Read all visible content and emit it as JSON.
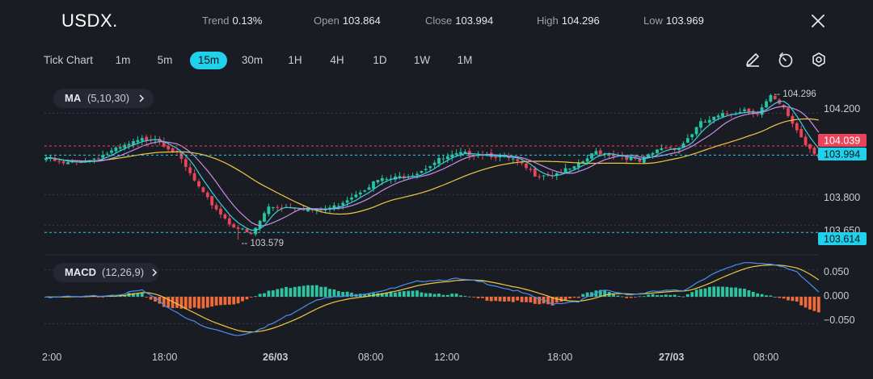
{
  "header": {
    "symbol": "USDX.",
    "stats": [
      {
        "label": "Trend",
        "value": "0.13%"
      },
      {
        "label": "Open",
        "value": "103.864"
      },
      {
        "label": "Close",
        "value": "103.994"
      },
      {
        "label": "High",
        "value": "104.296"
      },
      {
        "label": "Low",
        "value": "103.969"
      }
    ]
  },
  "toolbar": {
    "tick_chart": "Tick Chart",
    "timeframes": [
      "1m",
      "5m",
      "15m",
      "30m",
      "1H",
      "4H",
      "1D",
      "1W",
      "1M"
    ],
    "active_timeframe": "15m"
  },
  "indicators": {
    "ma": {
      "name": "MA",
      "params": "(5,10,30)"
    },
    "macd": {
      "name": "MACD",
      "params": "(12,26,9)"
    }
  },
  "colors": {
    "up": "#26c6a0",
    "down": "#e8455a",
    "ma5": "#39d0e0",
    "ma10": "#c88ee6",
    "ma30": "#f0c840",
    "macd_line": "#4a8ef0",
    "signal_line": "#f0c840",
    "hist_pos": "#2fc4a0",
    "hist_neg": "#f06a3a",
    "accent": "#1fd1ea"
  },
  "chart_data": {
    "type": "candlestick",
    "price_axis": {
      "ticks": [
        "104.200",
        "103.800",
        "103.650"
      ],
      "ylim": [
        103.52,
        104.36
      ]
    },
    "time_axis": {
      "ticks": [
        "2:00",
        "18:00",
        "26/03",
        "08:00",
        "12:00",
        "18:00",
        "27/03",
        "08:00"
      ]
    },
    "annotations": {
      "high": "104.296",
      "low": "103.579"
    },
    "price_labels": {
      "red": "104.039",
      "current": "103.994",
      "bottom": "103.614"
    },
    "macd_axis": {
      "ticks": [
        "0.050",
        "0.000",
        "−0.050"
      ],
      "ylim": [
        -0.075,
        0.075
      ]
    },
    "price_anchors": [
      [
        0,
        103.98
      ],
      [
        4,
        103.95
      ],
      [
        10,
        103.97
      ],
      [
        16,
        104.02
      ],
      [
        22,
        104.07
      ],
      [
        25,
        104.08
      ],
      [
        30,
        104.0
      ],
      [
        36,
        103.8
      ],
      [
        42,
        103.66
      ],
      [
        47,
        103.6
      ],
      [
        51,
        103.74
      ],
      [
        57,
        103.74
      ],
      [
        62,
        103.72
      ],
      [
        66,
        103.74
      ],
      [
        72,
        103.82
      ],
      [
        76,
        103.87
      ],
      [
        80,
        103.88
      ],
      [
        85,
        103.91
      ],
      [
        90,
        103.97
      ],
      [
        95,
        104.0
      ],
      [
        101,
        104.0
      ],
      [
        107,
        103.97
      ],
      [
        112,
        103.9
      ],
      [
        116,
        103.9
      ],
      [
        121,
        103.93
      ],
      [
        126,
        104.01
      ],
      [
        132,
        103.99
      ],
      [
        136,
        103.96
      ],
      [
        141,
        104.03
      ],
      [
        145,
        104.03
      ],
      [
        150,
        104.15
      ],
      [
        155,
        104.19
      ],
      [
        160,
        104.22
      ],
      [
        163,
        104.2
      ],
      [
        166,
        104.28
      ],
      [
        169,
        104.22
      ],
      [
        174,
        104.05
      ],
      [
        177,
        103.99
      ]
    ],
    "high_index": 166,
    "low_index": 44,
    "macd_anchors": [
      [
        0,
        0.0
      ],
      [
        8,
        -0.001
      ],
      [
        18,
        0.006
      ],
      [
        22,
        0.012
      ],
      [
        28,
        -0.02
      ],
      [
        36,
        -0.056
      ],
      [
        44,
        -0.072
      ],
      [
        50,
        -0.058
      ],
      [
        56,
        -0.032
      ],
      [
        62,
        -0.004
      ],
      [
        70,
        0.002
      ],
      [
        80,
        0.016
      ],
      [
        86,
        0.03
      ],
      [
        94,
        0.033
      ],
      [
        100,
        0.027
      ],
      [
        108,
        0.01
      ],
      [
        116,
        -0.013
      ],
      [
        122,
        -0.008
      ],
      [
        128,
        0.012
      ],
      [
        134,
        0.004
      ],
      [
        140,
        0.01
      ],
      [
        146,
        0.012
      ],
      [
        152,
        0.04
      ],
      [
        160,
        0.064
      ],
      [
        166,
        0.062
      ],
      [
        172,
        0.045
      ],
      [
        177,
        0.01
      ]
    ]
  }
}
